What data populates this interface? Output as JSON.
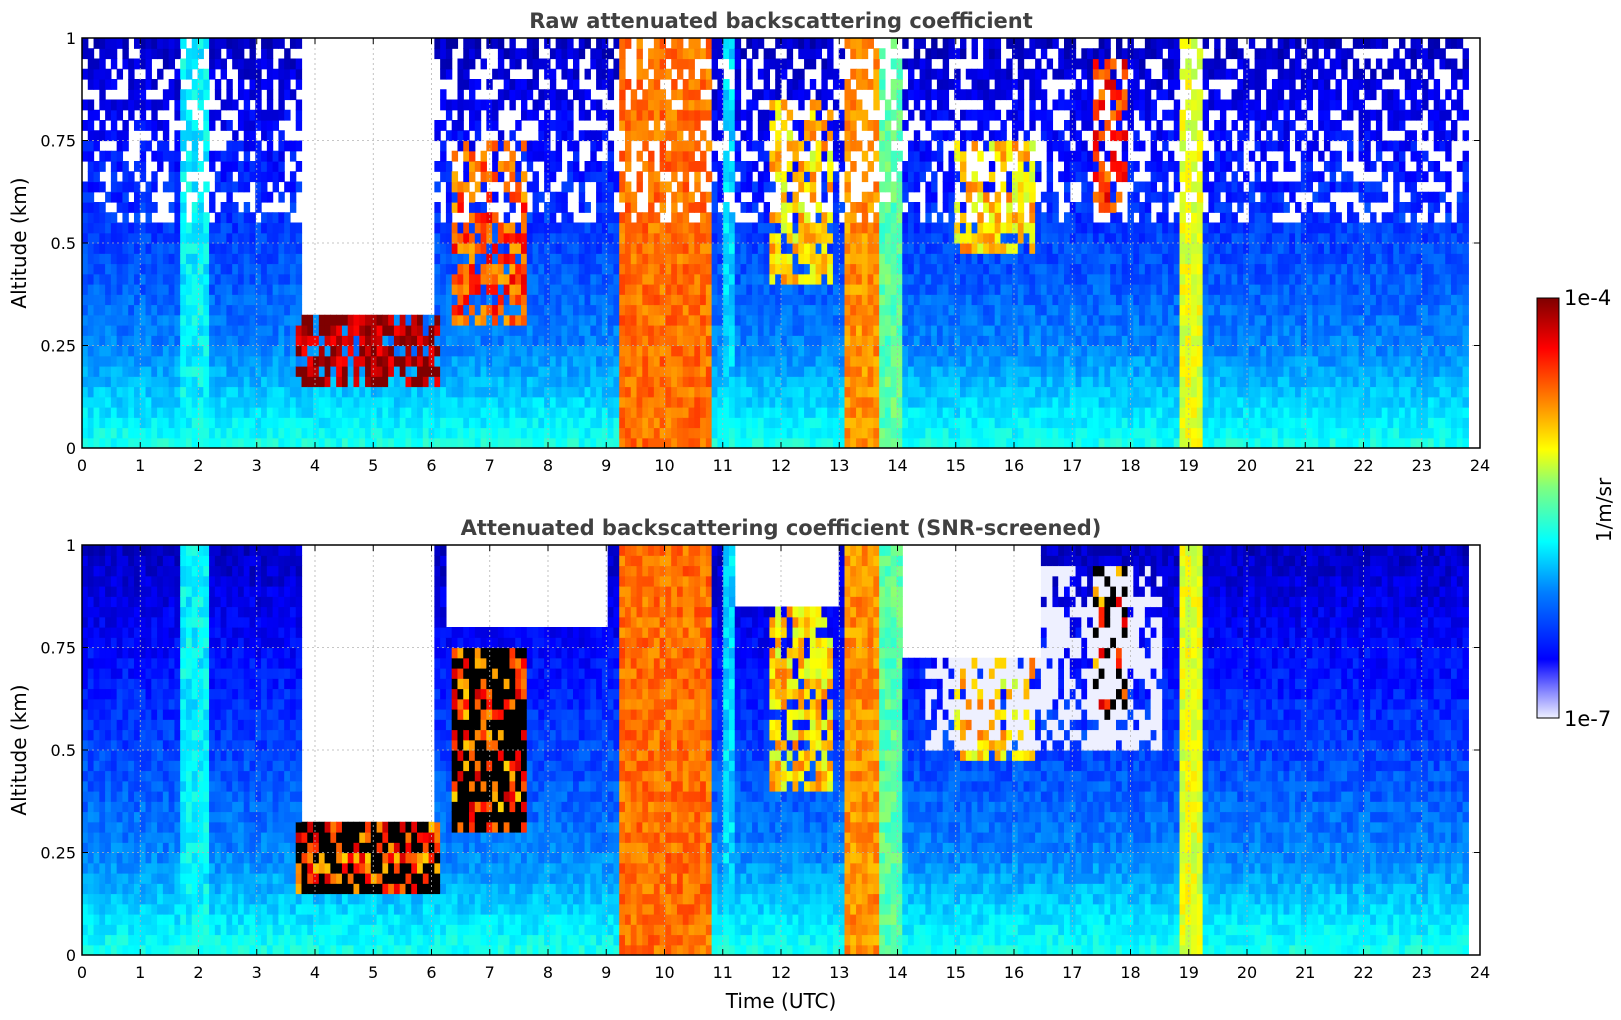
{
  "colors": {
    "jet": [
      "#00007f",
      "#0000ff",
      "#007fff",
      "#00ffff",
      "#7fff7f",
      "#ffff00",
      "#ff7f00",
      "#ff0000",
      "#7f0000"
    ],
    "low_end": "#eef0ff",
    "screened_saturated": "#000000",
    "title": "#404040"
  },
  "colorbar": {
    "label": "1/m/sr",
    "max_label": "1e-4",
    "min_label": "1e-7",
    "scale": "log",
    "range": [
      1e-07,
      0.0001
    ]
  },
  "shared_x": {
    "label": "Time (UTC)",
    "ticks": [
      "0",
      "1",
      "2",
      "3",
      "4",
      "5",
      "6",
      "7",
      "8",
      "9",
      "10",
      "11",
      "12",
      "13",
      "14",
      "15",
      "16",
      "17",
      "18",
      "19",
      "20",
      "21",
      "22",
      "23",
      "24"
    ],
    "range": [
      0,
      24
    ]
  },
  "chart_data": [
    {
      "type": "heatmap",
      "title": "Raw attenuated backscattering coefficient",
      "xlabel": "Time (UTC)",
      "ylabel": "Altitude (km)",
      "xlim": [
        0,
        24
      ],
      "ylim": [
        0,
        1
      ],
      "x_ticks": [
        "0",
        "1",
        "2",
        "3",
        "4",
        "5",
        "6",
        "7",
        "8",
        "9",
        "10",
        "11",
        "12",
        "13",
        "14",
        "15",
        "16",
        "17",
        "18",
        "19",
        "20",
        "21",
        "22",
        "23",
        "24"
      ],
      "y_ticks": [
        "0",
        "0.25",
        "0.5",
        "0.75",
        "1"
      ],
      "grid": true,
      "data_extent_hours": [
        0,
        23.8
      ],
      "features": [
        {
          "kind": "vertical_band",
          "x": [
            1.7,
            2.2
          ],
          "alt": [
            0,
            1
          ],
          "log10_value": -5.9
        },
        {
          "kind": "vertical_band",
          "x": [
            9.25,
            10.8
          ],
          "alt": [
            0,
            1
          ],
          "log10_value": -4.7
        },
        {
          "kind": "vertical_band",
          "x": [
            11.0,
            11.2
          ],
          "alt": [
            0,
            1
          ],
          "log10_value": -6.0
        },
        {
          "kind": "vertical_band",
          "x": [
            13.05,
            13.7
          ],
          "alt": [
            0,
            1
          ],
          "log10_value": -4.8
        },
        {
          "kind": "vertical_band",
          "x": [
            13.7,
            14.05
          ],
          "alt": [
            0,
            1
          ],
          "log10_value": -5.6
        },
        {
          "kind": "vertical_band",
          "x": [
            18.8,
            19.2
          ],
          "alt": [
            0,
            1
          ],
          "log10_value": -5.2
        },
        {
          "kind": "cloud_layer",
          "x": [
            3.7,
            6.1
          ],
          "alt": [
            0.14,
            0.33
          ],
          "log10_value": -4.1
        },
        {
          "kind": "cloud_layer",
          "x": [
            6.3,
            7.6
          ],
          "alt": [
            0.3,
            0.75
          ],
          "log10_value": -4.6
        },
        {
          "kind": "cloud_layer",
          "x": [
            11.8,
            12.9
          ],
          "alt": [
            0.4,
            0.85
          ],
          "log10_value": -5.0
        },
        {
          "kind": "cloud_layer",
          "x": [
            15.0,
            16.4
          ],
          "alt": [
            0.48,
            0.75
          ],
          "log10_value": -5.0
        },
        {
          "kind": "cloud_layer",
          "x": [
            17.4,
            17.9
          ],
          "alt": [
            0.58,
            0.95
          ],
          "log10_value": -4.5
        },
        {
          "kind": "no_signal",
          "x": [
            3.8,
            6.0
          ],
          "alt": [
            0.33,
            1
          ]
        },
        {
          "kind": "noisy_upper",
          "x": [
            0,
            23.8
          ],
          "alt": [
            0.55,
            1
          ]
        }
      ]
    },
    {
      "type": "heatmap",
      "title": "Attenuated backscattering coefficient (SNR-screened)",
      "xlabel": "Time (UTC)",
      "ylabel": "Altitude (km)",
      "xlim": [
        0,
        24
      ],
      "ylim": [
        0,
        1
      ],
      "x_ticks": [
        "0",
        "1",
        "2",
        "3",
        "4",
        "5",
        "6",
        "7",
        "8",
        "9",
        "10",
        "11",
        "12",
        "13",
        "14",
        "15",
        "16",
        "17",
        "18",
        "19",
        "20",
        "21",
        "22",
        "23",
        "24"
      ],
      "y_ticks": [
        "0",
        "0.25",
        "0.5",
        "0.75",
        "1"
      ],
      "grid": true,
      "data_extent_hours": [
        0,
        23.8
      ],
      "features": [
        {
          "kind": "vertical_band",
          "x": [
            1.7,
            2.2
          ],
          "alt": [
            0,
            1
          ],
          "log10_value": -5.9
        },
        {
          "kind": "vertical_band",
          "x": [
            9.25,
            10.8
          ],
          "alt": [
            0,
            1
          ],
          "log10_value": -4.7
        },
        {
          "kind": "vertical_band",
          "x": [
            11.0,
            11.2
          ],
          "alt": [
            0,
            1
          ],
          "log10_value": -6.0
        },
        {
          "kind": "vertical_band",
          "x": [
            13.05,
            13.7
          ],
          "alt": [
            0,
            1
          ],
          "log10_value": -4.8
        },
        {
          "kind": "vertical_band",
          "x": [
            13.7,
            14.05
          ],
          "alt": [
            0,
            1
          ],
          "log10_value": -5.6
        },
        {
          "kind": "vertical_band",
          "x": [
            18.8,
            19.2
          ],
          "alt": [
            0,
            1
          ],
          "log10_value": -5.2
        },
        {
          "kind": "cloud_layer_saturated",
          "x": [
            3.7,
            6.1
          ],
          "alt": [
            0.14,
            0.33
          ]
        },
        {
          "kind": "cloud_layer_saturated",
          "x": [
            6.3,
            7.6
          ],
          "alt": [
            0.3,
            0.75
          ]
        },
        {
          "kind": "cloud_layer",
          "x": [
            11.8,
            12.9
          ],
          "alt": [
            0.4,
            0.85
          ],
          "log10_value": -5.0
        },
        {
          "kind": "cloud_layer",
          "x": [
            15.0,
            16.4
          ],
          "alt": [
            0.48,
            0.75
          ],
          "log10_value": -5.0
        },
        {
          "kind": "cloud_layer_saturated",
          "x": [
            17.4,
            17.9
          ],
          "alt": [
            0.58,
            0.95
          ]
        },
        {
          "kind": "screened_out",
          "x": [
            3.8,
            6.0
          ],
          "alt": [
            0.33,
            1
          ]
        },
        {
          "kind": "screened_out",
          "x": [
            6.2,
            9.0
          ],
          "alt": [
            0.8,
            1
          ]
        },
        {
          "kind": "screened_out",
          "x": [
            11.2,
            13.0
          ],
          "alt": [
            0.85,
            1
          ]
        },
        {
          "kind": "screened_out",
          "x": [
            14.1,
            16.5
          ],
          "alt": [
            0.72,
            1
          ]
        },
        {
          "kind": "faint_upper",
          "x": [
            14.5,
            18.5
          ],
          "alt": [
            0.5,
            0.95
          ]
        }
      ]
    }
  ]
}
